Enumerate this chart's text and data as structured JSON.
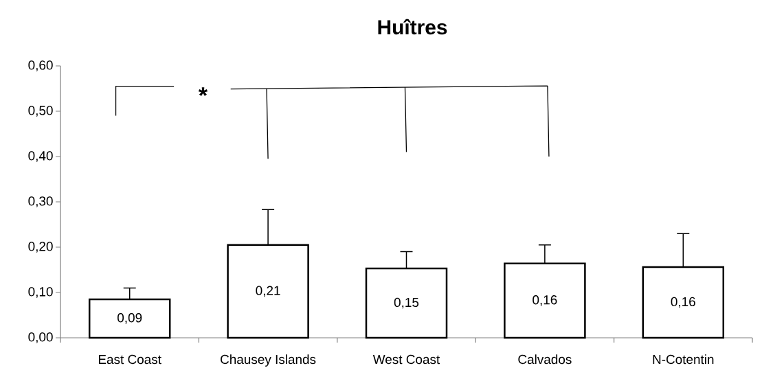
{
  "chart_data": {
    "type": "bar",
    "title": "Huîtres",
    "categories": [
      "East Coast",
      "Chausey Islands",
      "West Coast",
      "Calvados",
      "N-Cotentin"
    ],
    "series": [
      {
        "color": "#ffffff",
        "values": [
          0.085,
          0.205,
          0.153,
          0.164,
          0.156
        ],
        "value_labels": [
          "0,09",
          "0,21",
          "0,15",
          "0,16",
          "0,16"
        ],
        "errors": [
          [
            0.085,
            0.11
          ],
          [
            0.205,
            0.283
          ],
          [
            0.153,
            0.19
          ],
          [
            0.164,
            0.205
          ],
          [
            0.156,
            0.23
          ]
        ]
      }
    ],
    "ylim": [
      0,
      0.6
    ],
    "yticks": [
      {
        "value": 0,
        "label": "0,00"
      },
      {
        "value": 0.1,
        "label": "0,10"
      },
      {
        "value": 0.2,
        "label": "0,20"
      },
      {
        "value": 0.3,
        "label": "0,30"
      },
      {
        "value": 0.4,
        "label": "0,40"
      },
      {
        "value": 0.5,
        "label": "0,50"
      },
      {
        "value": 0.6,
        "label": "0,60"
      }
    ],
    "annotations": [
      "*"
    ]
  }
}
